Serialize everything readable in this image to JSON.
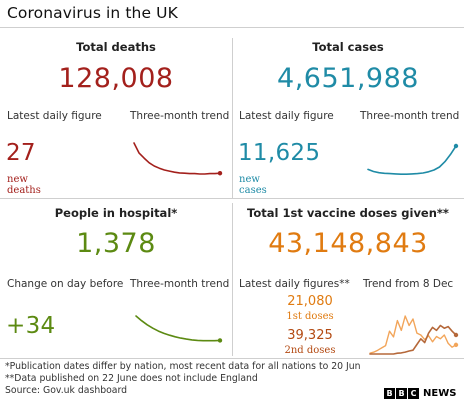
{
  "title": "Coronavirus in the UK",
  "colors": {
    "deaths": "#a3201c",
    "cases": "#1f8ba6",
    "hospital": "#5c8a12",
    "vaccine": "#e07b11",
    "vaccine_second": "#b34a12",
    "vaccine_first_line": "#f2a55a",
    "vaccine_second_line": "#b5683a"
  },
  "deaths": {
    "label": "Total deaths",
    "total": "128,008",
    "daily_label": "Latest daily figure",
    "trend_label": "Three-month trend",
    "daily": "27",
    "daily_sub": "new deaths"
  },
  "cases": {
    "label": "Total cases",
    "total": "4,651,988",
    "daily_label": "Latest daily figure",
    "trend_label": "Three-month trend",
    "daily": "11,625",
    "daily_sub": "new cases"
  },
  "hospital": {
    "label": "People in hospital*",
    "total": "1,378",
    "daily_label": "Change on day before",
    "trend_label": "Three-month trend",
    "daily": "+34"
  },
  "vaccine": {
    "label": "Total 1st vaccine doses given**",
    "total": "43,148,843",
    "daily_label": "Latest daily figures**",
    "trend_label": "Trend from 8 Dec",
    "first": "21,080",
    "first_sub": "1st doses",
    "second": "39,325",
    "second_sub": "2nd doses"
  },
  "footnotes": {
    "line1": "*Publication dates differ by nation, most recent data for all nations to 20 Jun",
    "line2": "**Data published on 22 June does not include England",
    "source": "Source: Gov.uk dashboard"
  },
  "logo": {
    "letters": [
      "B",
      "B",
      "C"
    ],
    "news": "NEWS"
  },
  "chart_data": [
    {
      "type": "line",
      "name": "deaths-trend",
      "values": [
        100,
        72,
        58,
        45,
        36,
        30,
        25,
        22,
        19,
        17,
        16,
        15,
        15,
        14,
        14,
        15,
        15,
        16
      ]
    },
    {
      "type": "line",
      "name": "cases-trend",
      "values": [
        22,
        15,
        11,
        9,
        8,
        7,
        6,
        6,
        7,
        8,
        10,
        14,
        20,
        30,
        48,
        72,
        100
      ]
    },
    {
      "type": "line",
      "name": "hospital-trend",
      "values": [
        100,
        82,
        66,
        53,
        42,
        33,
        26,
        20,
        15,
        11,
        8,
        6,
        5,
        5,
        5,
        6
      ]
    },
    {
      "type": "line",
      "name": "vaccine-first-trend",
      "values": [
        2,
        5,
        10,
        16,
        22,
        60,
        45,
        88,
        62,
        100,
        75,
        92,
        55,
        50,
        38,
        48,
        32,
        46,
        40,
        50,
        28,
        18,
        24
      ]
    },
    {
      "type": "line",
      "name": "vaccine-second-trend",
      "values": [
        0,
        0,
        0,
        0,
        0,
        0,
        0,
        2,
        3,
        5,
        8,
        10,
        25,
        40,
        30,
        55,
        70,
        62,
        75,
        68,
        72,
        60,
        50
      ]
    }
  ]
}
